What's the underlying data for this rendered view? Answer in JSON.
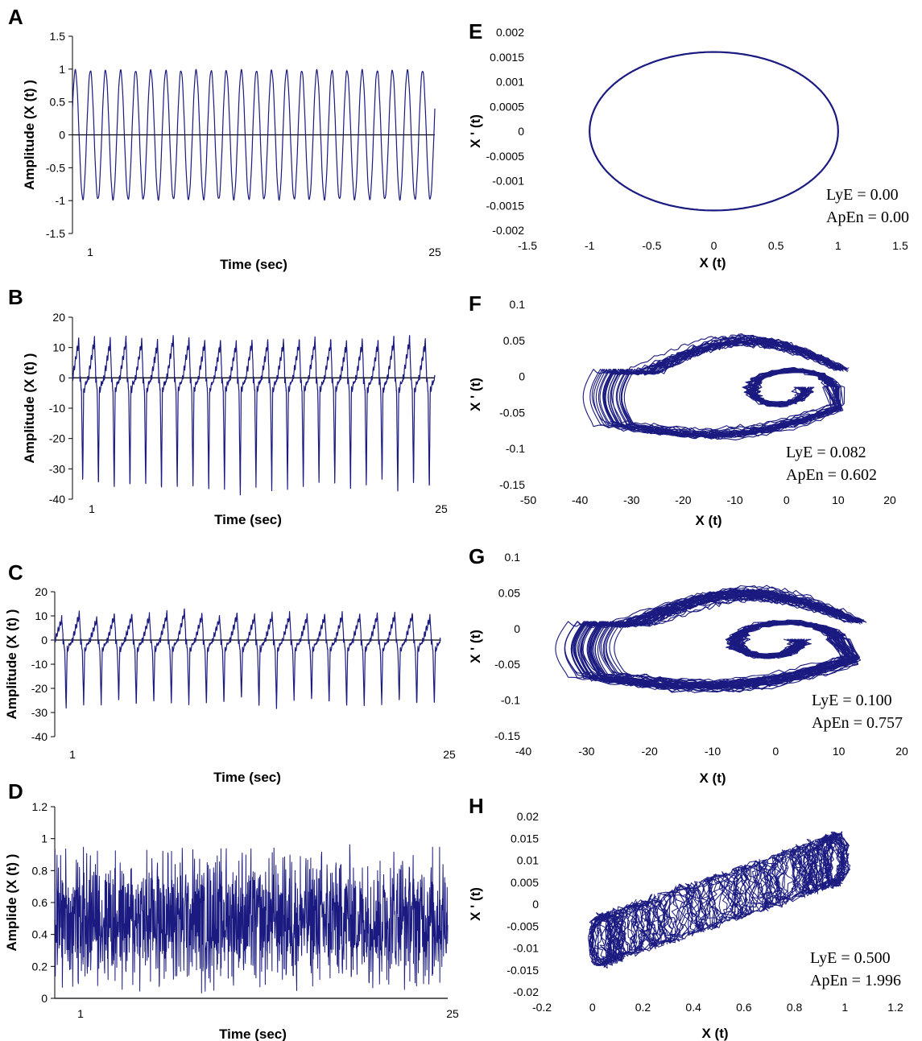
{
  "colors": {
    "trace": "#1a1a80",
    "axis": "#000000"
  },
  "chart_data": [
    {
      "letter": "A",
      "type": "line",
      "kind": "timeseries",
      "signal": "sine",
      "xlabel": "Time (sec)",
      "ylabel": "Amplitude (X (t) )",
      "xticks": [
        "1",
        "25"
      ],
      "yticks": [
        "1.5",
        "1",
        "0.5",
        "0",
        "-0.5",
        "-1",
        "-1.5"
      ],
      "xlim": [
        0,
        25
      ],
      "ylim": [
        -1.5,
        1.5
      ],
      "cycles": 24
    },
    {
      "letter": "B",
      "type": "line",
      "kind": "timeseries",
      "signal": "ecg",
      "xlabel": "Time (sec)",
      "ylabel": "Amplitude (X (t) )",
      "xticks": [
        "1",
        "25"
      ],
      "yticks": [
        "20",
        "10",
        "0",
        "-10",
        "-20",
        "-30",
        "-40"
      ],
      "xlim": [
        0,
        25
      ],
      "ylim": [
        -40,
        20
      ],
      "beats": 23,
      "peak": 12,
      "trough": -37
    },
    {
      "letter": "C",
      "type": "line",
      "kind": "timeseries",
      "signal": "ecg",
      "xlabel": "Time (sec)",
      "ylabel": "Amplitude (X (t) )",
      "xticks": [
        "1",
        "25"
      ],
      "yticks": [
        "20",
        "10",
        "0",
        "-10",
        "-20",
        "-30",
        "-40"
      ],
      "xlim": [
        0,
        25
      ],
      "ylim": [
        -40,
        20
      ],
      "beats": 22,
      "peak": 10,
      "trough": -27
    },
    {
      "letter": "D",
      "type": "line",
      "kind": "timeseries",
      "signal": "noise",
      "xlabel": "Time (sec)",
      "ylabel": "Amplide (X (t) )",
      "xticks": [
        "1",
        "25"
      ],
      "yticks": [
        "1.2",
        "1",
        "0.8",
        "0.6",
        "0.4",
        "0.2",
        "0"
      ],
      "xlim": [
        0,
        25
      ],
      "ylim": [
        0,
        1.2
      ]
    },
    {
      "letter": "E",
      "type": "line",
      "kind": "phase",
      "shape": "ellipse",
      "xlabel": "X (t)",
      "ylabel": "X ' (t)",
      "xticks": [
        "-1.5",
        "-1",
        "-0.5",
        "0",
        "0.5",
        "1",
        "1.5"
      ],
      "yticks": [
        "0.002",
        "0.0015",
        "0.001",
        "0.0005",
        "0",
        "-0.0005",
        "-0.001",
        "-0.0015",
        "-0.002"
      ],
      "xlim": [
        -1.5,
        1.5
      ],
      "ylim": [
        -0.002,
        0.002
      ],
      "annotations": [
        "LyE = 0.00",
        "ApEn = 0.00"
      ]
    },
    {
      "letter": "F",
      "type": "line",
      "kind": "phase",
      "shape": "ecg-loop",
      "xlabel": "X (t)",
      "ylabel": "X ' (t)",
      "xticks": [
        "-50",
        "-40",
        "-30",
        "-20",
        "-10",
        "0",
        "10",
        "20"
      ],
      "yticks": [
        "0.1",
        "0.05",
        "0",
        "-0.05",
        "-0.1",
        "-0.15"
      ],
      "xlim": [
        -50,
        20
      ],
      "ylim": [
        -0.15,
        0.1
      ],
      "annotations": [
        "LyE = 0.082",
        "ApEn = 0.602"
      ]
    },
    {
      "letter": "G",
      "type": "line",
      "kind": "phase",
      "shape": "ecg-loop",
      "xlabel": "X (t)",
      "ylabel": "X ' (t)",
      "xticks": [
        "-40",
        "-30",
        "-20",
        "-10",
        "0",
        "10",
        "20"
      ],
      "yticks": [
        "0.1",
        "0.05",
        "0",
        "-0.05",
        "-0.1",
        "-0.15"
      ],
      "xlim": [
        -40,
        20
      ],
      "ylim": [
        -0.15,
        0.1
      ],
      "annotations": [
        "LyE = 0.100",
        "ApEn = 0.757"
      ]
    },
    {
      "letter": "H",
      "type": "line",
      "kind": "phase",
      "shape": "band",
      "xlabel": "X (t)",
      "ylabel": "X ' (t)",
      "xticks": [
        "-0.2",
        "0",
        "0.2",
        "0.4",
        "0.6",
        "0.8",
        "1",
        "1.2"
      ],
      "yticks": [
        "0.02",
        "0.015",
        "0.01",
        "0.005",
        "0",
        "-0.005",
        "-0.01",
        "-0.015",
        "-0.02"
      ],
      "xlim": [
        -0.2,
        1.2
      ],
      "ylim": [
        -0.02,
        0.02
      ],
      "annotations": [
        "LyE = 0.500",
        "ApEn = 1.996"
      ]
    }
  ]
}
